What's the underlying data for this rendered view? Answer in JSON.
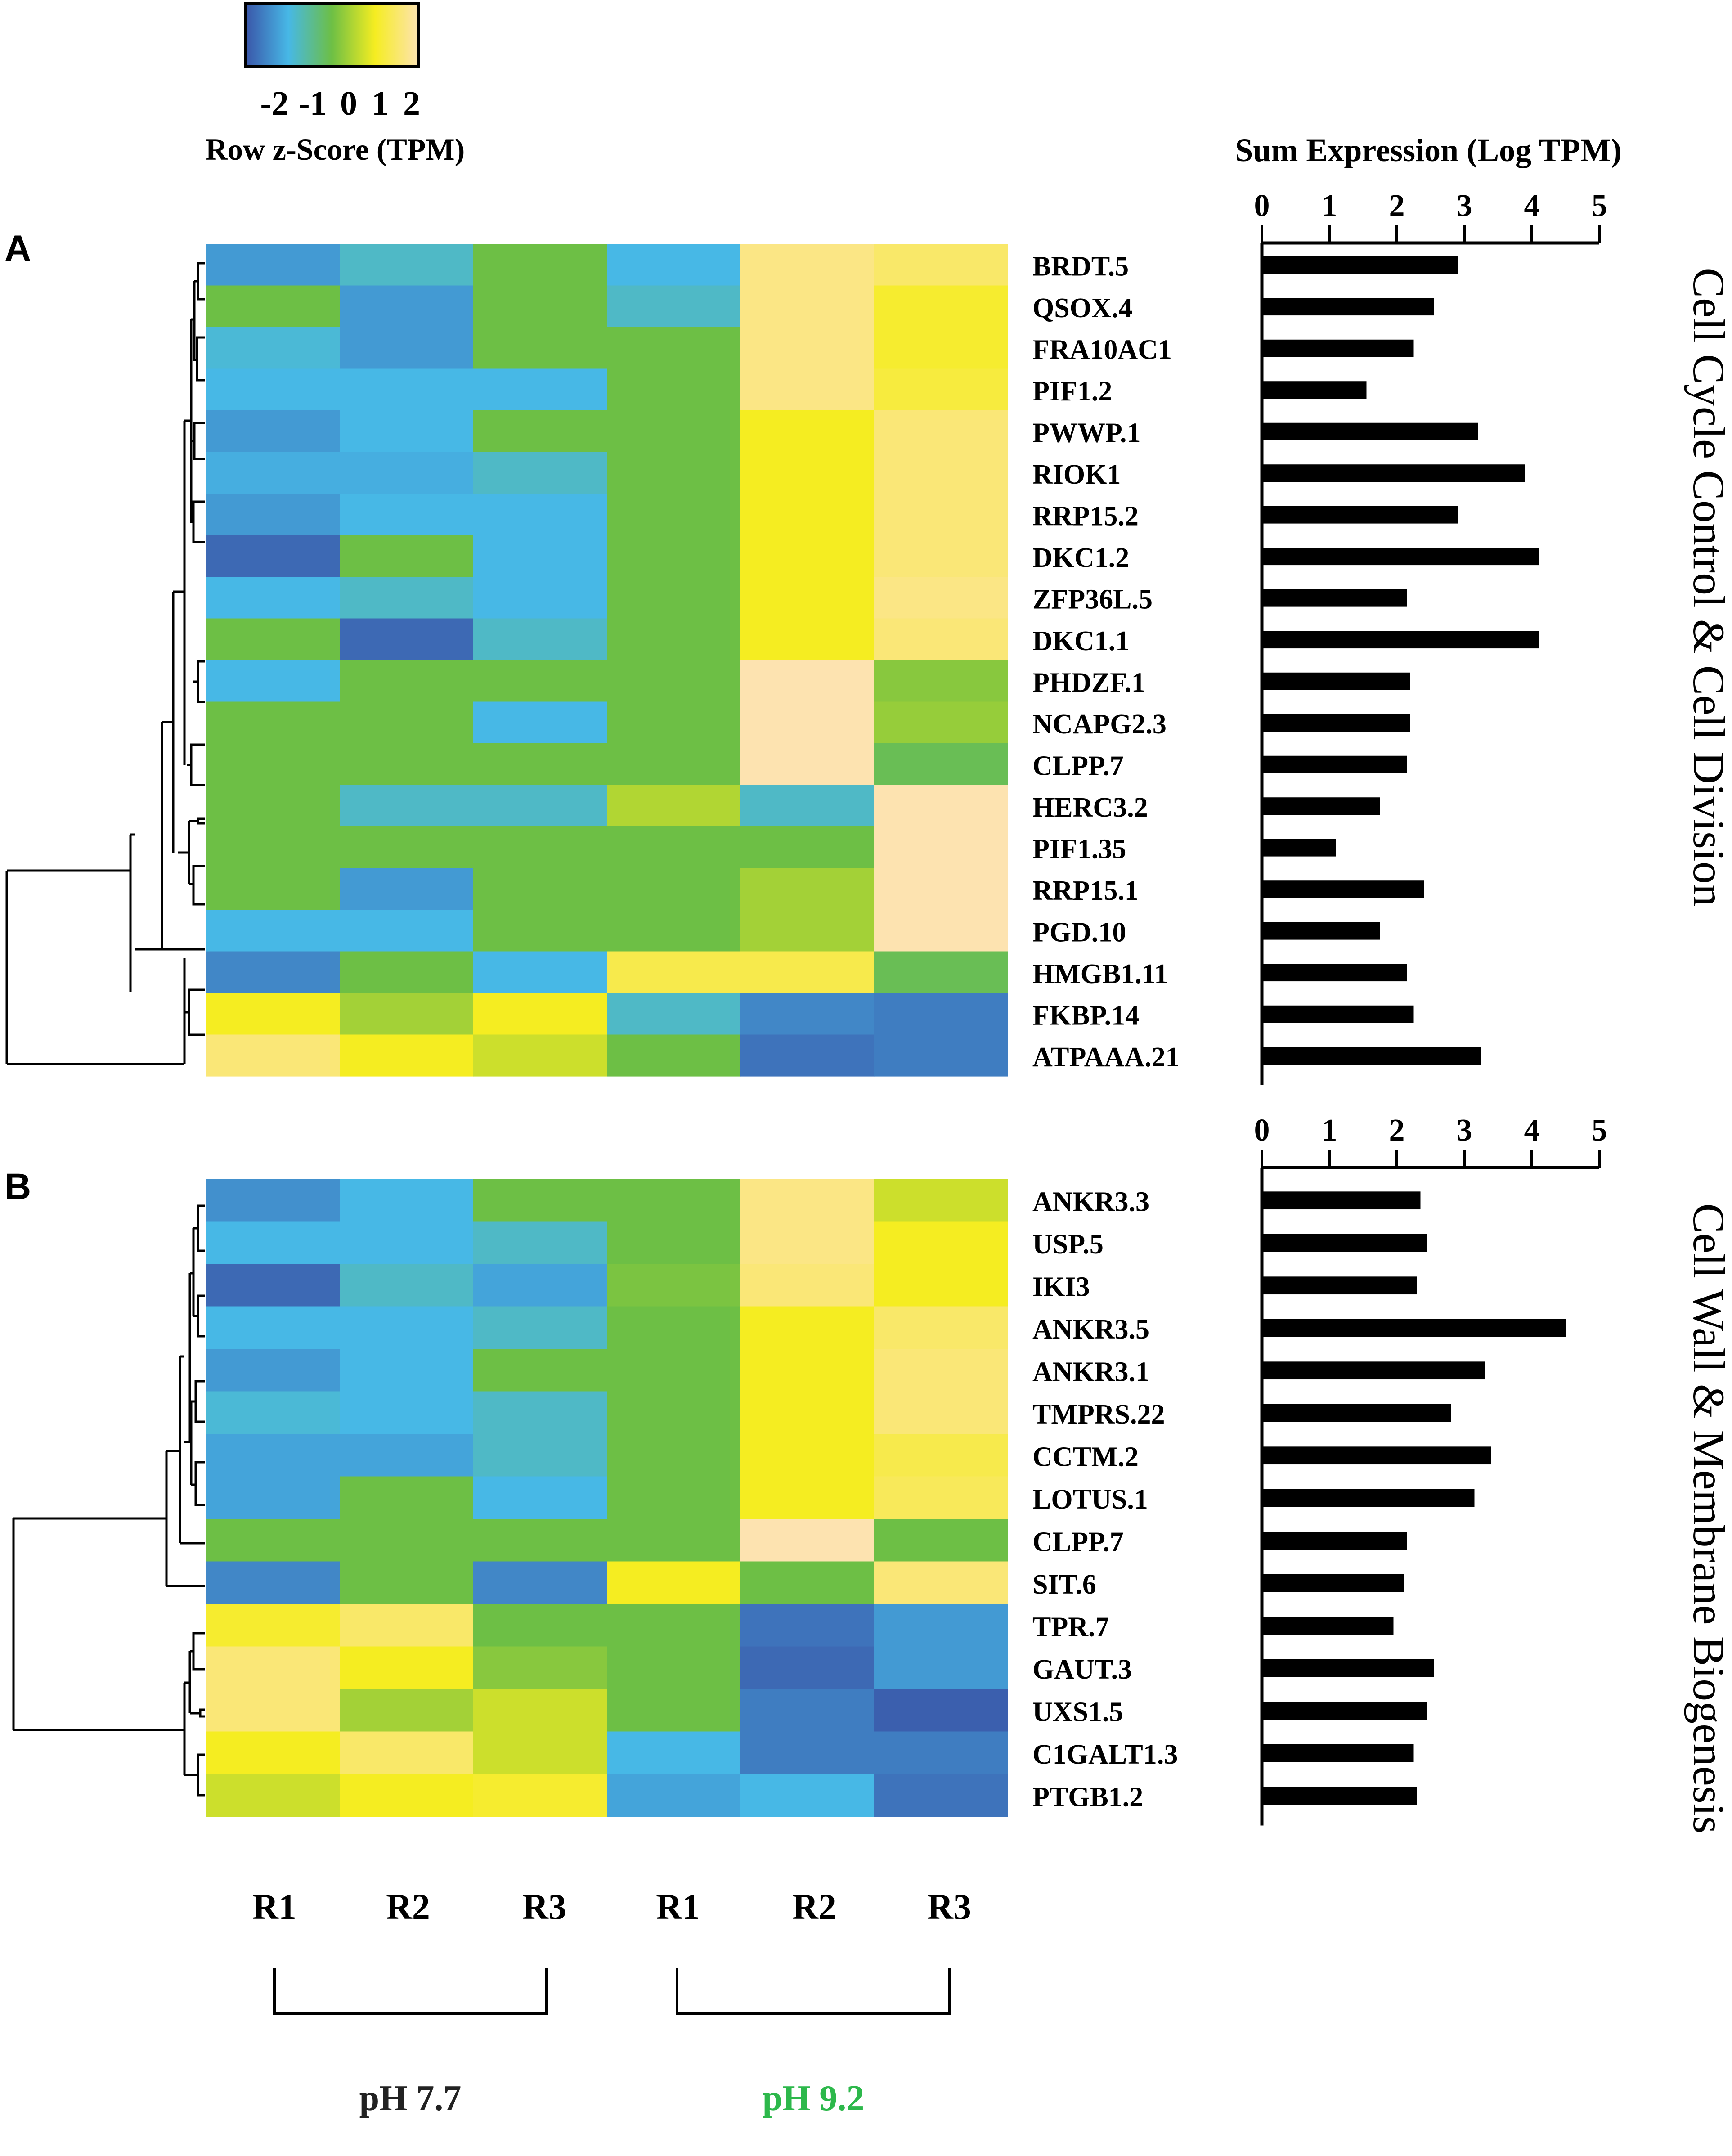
{
  "colors": {
    "scale": [
      "#3a55a8",
      "#47b8e6",
      "#6dbf45",
      "#f5ed21",
      "#fde3b0"
    ],
    "bar": "#000000",
    "ph92_label": "#2db84b",
    "ph77_label": "#222222",
    "dendro": "#000000"
  },
  "legend": {
    "ticks": [
      "-2",
      "-1",
      "0",
      "1",
      "2"
    ],
    "title": "Row z-Score (TPM)"
  },
  "chart_data": [
    {
      "type": "heatmap",
      "panel": "A",
      "group_title": "Cell Cycle Control & Cell Division",
      "rows": [
        "BRDT.5",
        "QSOX.4",
        "FRA10AC1",
        "PIF1.2",
        "PWWP.1",
        "RIOK1",
        "RRP15.2",
        "DKC1.2",
        "ZFP36L.5",
        "DKC1.1",
        "PHDZF.1",
        "NCAPG2.3",
        "CLPP.7",
        "HERC3.2",
        "PIF1.35",
        "RRP15.1",
        "PGD.10",
        "HMGB1.11",
        "FKBP.14",
        "ATPAAA.21"
      ],
      "z_scores": [
        [
          -1.3,
          -0.8,
          0,
          -1,
          1.7,
          1.5
        ],
        [
          0,
          -1.3,
          0,
          -0.8,
          1.7,
          1.1
        ],
        [
          -0.9,
          -1.3,
          0,
          0,
          1.7,
          1.1
        ],
        [
          -1,
          -1,
          -1,
          0,
          1.7,
          1.2
        ],
        [
          -1.3,
          -1,
          0,
          0,
          1,
          1.6
        ],
        [
          -1.1,
          -1.1,
          -0.8,
          0,
          1,
          1.6
        ],
        [
          -1.3,
          -1,
          -1,
          0,
          1,
          1.6
        ],
        [
          -1.8,
          0,
          -1,
          0,
          1,
          1.6
        ],
        [
          -1,
          -0.8,
          -1,
          0,
          1,
          1.7
        ],
        [
          0,
          -1.8,
          -0.8,
          0,
          1,
          1.6
        ],
        [
          -1,
          0,
          0,
          0,
          2,
          0.2
        ],
        [
          0,
          0,
          -1,
          0,
          2,
          0.3
        ],
        [
          0,
          0,
          0,
          0,
          2,
          -0.1
        ],
        [
          0,
          -0.8,
          -0.8,
          0.5,
          -0.8,
          2
        ],
        [
          0,
          0,
          0,
          0,
          0,
          2
        ],
        [
          0,
          -1.3,
          0,
          0,
          0.4,
          2
        ],
        [
          -1,
          -1,
          0,
          0,
          0.4,
          2
        ],
        [
          -1.5,
          0,
          -1,
          1.3,
          1.3,
          -0.1
        ],
        [
          1,
          0.4,
          1,
          -0.8,
          -1.5,
          -1.6
        ],
        [
          1.6,
          1,
          0.7,
          0,
          -1.7,
          -1.6
        ]
      ],
      "sum_expression": [
        2.9,
        2.55,
        2.25,
        1.55,
        3.2,
        3.9,
        2.9,
        4.1,
        2.15,
        4.1,
        2.2,
        2.2,
        2.15,
        1.75,
        1.1,
        2.4,
        1.75,
        2.15,
        2.25,
        3.25
      ],
      "axis": {
        "title": "Sum Expression (Log TPM)",
        "range": [
          0,
          5
        ],
        "ticks": [
          "0",
          "1",
          "2",
          "3",
          "4",
          "5"
        ]
      }
    },
    {
      "type": "heatmap",
      "panel": "B",
      "group_title": "Cell Wall & Membrane Biogenesis",
      "rows": [
        "ANKR3.3",
        "USP.5",
        "IKI3",
        "ANKR3.5",
        "ANKR3.1",
        "TMPRS.22",
        "CCTM.2",
        "LOTUS.1",
        "CLPP.7",
        "SIT.6",
        "TPR.7",
        "GAUT.3",
        "UXS1.5",
        "C1GALT1.3",
        "PTGB1.2"
      ],
      "z_scores": [
        [
          -1.4,
          -1,
          0,
          0,
          1.7,
          0.7
        ],
        [
          -1,
          -1,
          -0.8,
          0,
          1.7,
          1
        ],
        [
          -1.8,
          -0.8,
          -1.2,
          0.1,
          1.6,
          1
        ],
        [
          -1,
          -1,
          -0.8,
          0,
          1,
          1.5
        ],
        [
          -1.3,
          -1,
          0,
          0,
          1,
          1.6
        ],
        [
          -0.9,
          -1,
          -0.8,
          0,
          1,
          1.6
        ],
        [
          -1.2,
          -1.2,
          -0.8,
          0,
          1,
          1.3
        ],
        [
          -1.2,
          0,
          -1,
          0,
          1,
          1.4
        ],
        [
          0,
          0,
          0,
          0,
          2,
          0
        ],
        [
          -1.5,
          0,
          -1.5,
          1,
          0,
          1.6
        ],
        [
          1.1,
          1.5,
          0,
          0,
          -1.7,
          -1.3
        ],
        [
          1.6,
          1,
          0.2,
          0,
          -1.8,
          -1.3
        ],
        [
          1.6,
          0.4,
          0.7,
          0,
          -1.6,
          -1.9
        ],
        [
          1,
          1.5,
          0.7,
          -1,
          -1.6,
          -1.6
        ],
        [
          0.7,
          1,
          1.1,
          -1.2,
          -1,
          -1.7
        ]
      ],
      "sum_expression": [
        2.35,
        2.45,
        2.3,
        4.5,
        3.3,
        2.8,
        3.4,
        3.15,
        2.15,
        2.1,
        1.95,
        2.55,
        2.45,
        2.25,
        2.3
      ],
      "axis": {
        "title": "Sum Expression (Log TPM)",
        "range": [
          0,
          5
        ],
        "ticks": [
          "0",
          "1",
          "2",
          "3",
          "4",
          "5"
        ]
      }
    }
  ],
  "columns": [
    "R1",
    "R2",
    "R3",
    "R1",
    "R2",
    "R3"
  ],
  "groups": [
    "pH 7.7",
    "pH 9.2"
  ]
}
